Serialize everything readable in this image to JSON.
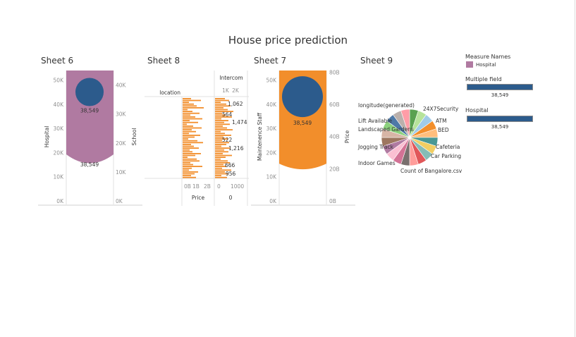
{
  "dashboard": {
    "title": "House price prediction"
  },
  "colors": {
    "purple": "#b07aa1",
    "blue": "#2c5b8c",
    "orange": "#f28e2b",
    "grid": "#e6e6e6",
    "axis_text": "#8f8f8f"
  },
  "sheets": {
    "sheet6": {
      "title": "Sheet 6"
    },
    "sheet8": {
      "title": "Sheet 8"
    },
    "sheet7": {
      "title": "Sheet 7"
    },
    "sheet9": {
      "title": "Sheet 9"
    }
  },
  "legend": {
    "measure_names": {
      "title": "Measure Names",
      "item_label": "Hospital",
      "item_color": "#b07aa1"
    },
    "multiple_field": {
      "title": "Multiple field",
      "value": "38,549",
      "bar_fraction": 1.0
    },
    "hospital": {
      "title": "Hospital",
      "value": "38,549",
      "bar_fraction": 1.0
    }
  },
  "chart_data": [
    {
      "id": "sheet6",
      "type": "area",
      "yaxis_left": {
        "label": "Hospital",
        "ticks": [
          "0K",
          "10K",
          "20K",
          "30K",
          "40K",
          "50K"
        ],
        "ylim": [
          0,
          54000
        ]
      },
      "yaxis_right": {
        "label": "School",
        "ticks": [
          "0K",
          "10K",
          "20K",
          "30K",
          "40K"
        ],
        "ylim": [
          0,
          45000
        ]
      },
      "series": [
        {
          "name": "Hospital",
          "value": 38549,
          "label": "38,549",
          "color": "#b07aa1"
        },
        {
          "name": "School",
          "value": 38549,
          "label": "38,549",
          "color": "#2c5b8c"
        }
      ]
    },
    {
      "id": "sheet8",
      "type": "bar",
      "row_label": "location",
      "x_left": {
        "label": "Price",
        "ticks": [
          "0B",
          "1B",
          "2B"
        ]
      },
      "x_right": {
        "header": "Intercom",
        "top_ticks": [
          "1K",
          "2K"
        ],
        "label": "0",
        "ticks": [
          "0",
          "1000"
        ]
      },
      "data_labels": [
        "1,062",
        "564",
        "1,474",
        "522",
        "1,216",
        "666",
        "956"
      ]
    },
    {
      "id": "sheet7",
      "type": "area",
      "yaxis_left": {
        "label": "Maintenence Staff",
        "ticks": [
          "0K",
          "10K",
          "20K",
          "30K",
          "40K",
          "50K"
        ],
        "ylim": [
          0,
          54000
        ]
      },
      "yaxis_right": {
        "label": "Price",
        "ticks": [
          "0B",
          "20B",
          "40B",
          "60B",
          "80B"
        ],
        "ylim": [
          0,
          81
        ]
      },
      "series": [
        {
          "name": "Maintenence Staff",
          "value": 38549,
          "label": "38,549",
          "color": "#f28e2b"
        },
        {
          "name": "Price",
          "value": 38549,
          "label": "38,549",
          "color": "#2c5b8c"
        }
      ]
    },
    {
      "id": "sheet9",
      "type": "pie",
      "labels_left": [
        "longitude(generated)",
        "Lift Available",
        "Landscaped Gardens",
        "Jogging Track",
        "Indoor Games"
      ],
      "labels_right": [
        "24X7Security",
        "ATM",
        "BED",
        "Cafeteria",
        "Car Parking"
      ],
      "labels_bottom": [
        "Count of Bangalore.csv"
      ],
      "slices": [
        {
          "color": "#59a14f",
          "value": 1
        },
        {
          "color": "#b6e39b",
          "value": 1
        },
        {
          "color": "#a0cbe8",
          "value": 1
        },
        {
          "color": "#f28e2b",
          "value": 1
        },
        {
          "color": "#ffbe7d",
          "value": 1
        },
        {
          "color": "#499894",
          "value": 1
        },
        {
          "color": "#f1ce63",
          "value": 1
        },
        {
          "color": "#86bcb6",
          "value": 1
        },
        {
          "color": "#e15759",
          "value": 1
        },
        {
          "color": "#ff9d9a",
          "value": 1
        },
        {
          "color": "#79706e",
          "value": 1
        },
        {
          "color": "#d37295",
          "value": 1
        },
        {
          "color": "#fabfd2",
          "value": 1
        },
        {
          "color": "#b07aa1",
          "value": 1
        },
        {
          "color": "#9d7660",
          "value": 1
        },
        {
          "color": "#d7b5a6",
          "value": 1
        },
        {
          "color": "#8cd17d",
          "value": 1
        },
        {
          "color": "#4e79a7",
          "value": 1
        },
        {
          "color": "#bab0ac",
          "value": 1
        },
        {
          "color": "#ff9da7",
          "value": 1
        }
      ]
    }
  ]
}
